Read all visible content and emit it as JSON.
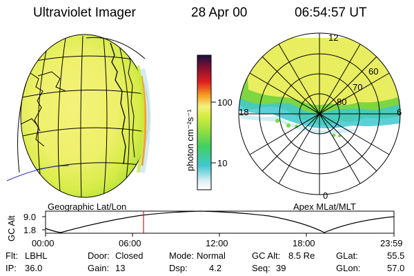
{
  "header": {
    "title": "Ultraviolet Imager",
    "date": "28 Apr 00",
    "time": "06:54:57 UT"
  },
  "colorbar": {
    "label": "photon cm⁻²s⁻¹",
    "ticks": [
      "100",
      "10"
    ],
    "colors": [
      "#e6f4f8",
      "#40c8d0",
      "#7ed641",
      "#c8ea30",
      "#f4f080",
      "#f7a020",
      "#e02020",
      "#8b1030",
      "#1a1040"
    ]
  },
  "left_panel": {
    "label": "Geographic Lat/Lon"
  },
  "right_panel": {
    "label": "Apex MLat/MLT",
    "mlt_labels": [
      "12",
      "6",
      "18",
      "0"
    ],
    "lat_labels": [
      "60",
      "70",
      "80"
    ]
  },
  "alt_plot": {
    "ylabel": "GC Alt",
    "yticks": [
      "9.0",
      "1.8"
    ],
    "xticks": [
      "00:00",
      "06:00",
      "12:00",
      "18:00",
      "23:59"
    ],
    "marker_time": "06:54:57",
    "marker_color": "#d02020"
  },
  "info": {
    "flt_label": "Flt:",
    "flt_value": "LBHL",
    "ip_label": "IP:",
    "ip_value": "36.0",
    "door_label": "Door:",
    "door_value": "Closed",
    "gain_label": "Gain:",
    "gain_value": "13",
    "mode_label": "Mode:",
    "mode_value": "Normal",
    "dsp_label": "Dsp:",
    "dsp_value": "4.2",
    "gcalt_label": "GC Alt:",
    "gcalt_value": "8.5 Re",
    "seq_label": "Seq:",
    "seq_value": "39",
    "glat_label": "GLat:",
    "glat_value": "55.5",
    "glon_label": "GLon:",
    "glon_value": "57.0"
  }
}
